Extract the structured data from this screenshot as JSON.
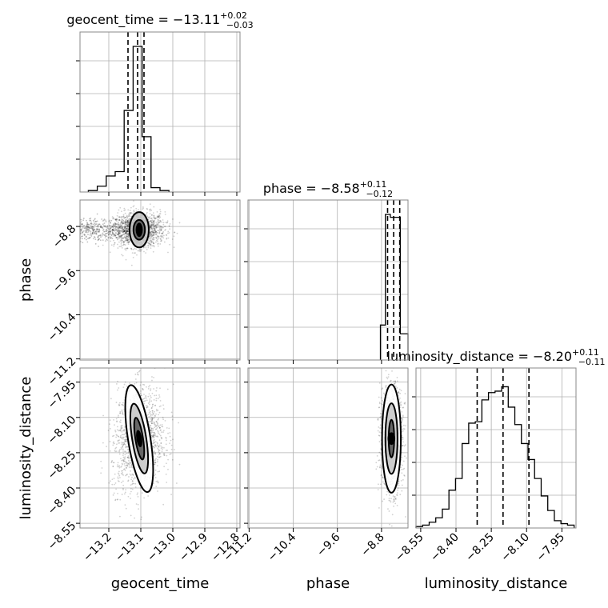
{
  "chart_data": {
    "type": "corner",
    "parameters": [
      "geocent_time",
      "phase",
      "luminosity_distance"
    ],
    "titles": [
      {
        "param": "geocent_time",
        "text": "geocent_time = −13.11",
        "sup": "+0.02",
        "sub": "−0.03"
      },
      {
        "param": "phase",
        "text": "phase = −8.58",
        "sup": "+0.11",
        "sub": "−0.12"
      },
      {
        "param": "luminosity_distance",
        "text": "luminosity_distance = −8.20",
        "sup": "+0.11",
        "sub": "−0.11"
      }
    ],
    "axes": {
      "geocent_time": {
        "range": [
          -13.29,
          -12.79
        ],
        "ticks": [
          -13.2,
          -13.1,
          -13.0,
          -12.9,
          -12.8
        ],
        "tick_labels": [
          "−13.2",
          "−13.1",
          "−13.0",
          "−12.9",
          "−12.8"
        ]
      },
      "phase": {
        "range": [
          -11.22,
          -8.32
        ],
        "ticks": [
          -11.2,
          -10.4,
          -9.6,
          -8.8
        ],
        "tick_labels": [
          "−11.2",
          "−10.4",
          "−9.6",
          "−8.8"
        ]
      },
      "luminosity_distance": {
        "range": [
          -8.57,
          -7.89
        ],
        "ticks": [
          -8.55,
          -8.4,
          -8.25,
          -8.1,
          -7.95
        ],
        "tick_labels": [
          "−8.55",
          "−8.40",
          "−8.25",
          "−8.10",
          "−7.95"
        ]
      }
    },
    "histograms": {
      "geocent_time": {
        "quantiles": [
          -13.14,
          -13.11,
          -13.09
        ],
        "edges": [
          -13.264,
          -13.236,
          -13.208,
          -13.18,
          -13.152,
          -13.124,
          -13.096,
          -13.068,
          -13.04,
          -13.012
        ],
        "counts": [
          0.01,
          0.04,
          0.11,
          0.14,
          0.56,
          1.0,
          0.38,
          0.03,
          0.01
        ]
      },
      "phase": {
        "quantiles": [
          -8.69,
          -8.58,
          -8.47
        ],
        "edges": [
          -8.82,
          -8.73,
          -8.64,
          -8.55,
          -8.46,
          -8.37,
          -8.32
        ],
        "counts": [
          0.24,
          1.0,
          0.98,
          0.98,
          0.18,
          0.18
        ]
      },
      "luminosity_distance": {
        "quantiles": [
          -8.31,
          -8.2,
          -8.09
        ],
        "edges": [
          -8.57,
          -8.542,
          -8.514,
          -8.486,
          -8.458,
          -8.43,
          -8.402,
          -8.374,
          -8.346,
          -8.318,
          -8.29,
          -8.262,
          -8.234,
          -8.206,
          -8.178,
          -8.15,
          -8.122,
          -8.094,
          -8.066,
          -8.038,
          -8.01,
          -7.982,
          -7.954,
          -7.926,
          -7.898
        ],
        "counts": [
          0.01,
          0.02,
          0.04,
          0.07,
          0.13,
          0.26,
          0.34,
          0.58,
          0.72,
          0.73,
          0.88,
          0.93,
          0.94,
          0.97,
          0.83,
          0.71,
          0.58,
          0.47,
          0.34,
          0.22,
          0.12,
          0.05,
          0.03,
          0.02
        ]
      }
    },
    "contours_2d": [
      {
        "x": "geocent_time",
        "y": "phase",
        "center": [
          -13.105,
          -8.86
        ],
        "levels": [
          {
            "rx": 0.018,
            "ry": 0.18,
            "fill": "#555555"
          },
          {
            "rx": 0.03,
            "ry": 0.32,
            "fill": "#c4c4c4"
          }
        ],
        "core": {
          "rx": 0.006,
          "ry": 0.1,
          "fill": "#000000"
        },
        "cloud_sigma": [
          0.04,
          0.16
        ],
        "cloud_tail": {
          "x_from": -13.29,
          "x_to": -13.13,
          "sigma_y": 0.1
        }
      },
      {
        "x": "geocent_time",
        "y": "luminosity_distance",
        "center": [
          -13.105,
          -8.19
        ],
        "tilt": 0.15,
        "levels": [
          {
            "rx": 0.012,
            "ry": 0.09,
            "fill": "#555555"
          },
          {
            "rx": 0.022,
            "ry": 0.15,
            "fill": "#c4c4c4"
          },
          {
            "rx": 0.035,
            "ry": 0.23,
            "fill": "#ffffff"
          }
        ],
        "core": {
          "rx": 0.004,
          "ry": 0.03,
          "fill": "#000000"
        },
        "cloud_sigma": [
          0.04,
          0.11
        ]
      },
      {
        "x": "phase",
        "y": "luminosity_distance",
        "center": [
          -8.62,
          -8.19
        ],
        "levels": [
          {
            "rx": 0.05,
            "ry": 0.08,
            "fill": "#555555"
          },
          {
            "rx": 0.11,
            "ry": 0.15,
            "fill": "#c4c4c4"
          },
          {
            "rx": 0.17,
            "ry": 0.23,
            "fill": "#ffffff"
          }
        ],
        "core": {
          "rx": 0.04,
          "ry": 0.02,
          "fill": "#000000"
        },
        "cloud_sigma": [
          0.1,
          0.11
        ]
      }
    ],
    "grid": true,
    "colors": {
      "line": "#000000",
      "grid": "#b0b0b0",
      "points": "#000000"
    }
  }
}
